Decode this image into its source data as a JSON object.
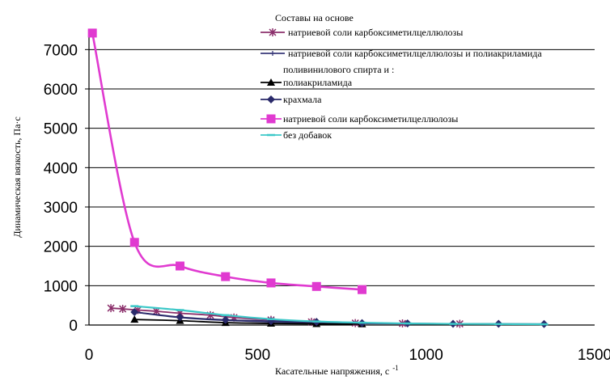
{
  "chart_data": {
    "type": "line",
    "title": "",
    "xlabel": "Касательные напряжения, с",
    "xlabel_sup": "-1",
    "ylabel": "Динамическая вязкость, Па·с",
    "xlim": [
      0,
      1500
    ],
    "ylim": [
      0,
      7500
    ],
    "xticks": [
      0,
      500,
      1000,
      1500
    ],
    "yticks": [
      0,
      1000,
      2000,
      3000,
      4000,
      5000,
      6000,
      7000
    ],
    "xtick_labels": [
      "0",
      "500",
      "1000",
      "1500"
    ],
    "ytick_labels": [
      "0",
      "1000",
      "2000",
      "3000",
      "4000",
      "5000",
      "6000",
      "7000"
    ],
    "grid": "horizontal",
    "legend": {
      "placement": "top-right",
      "header": "Составы на основе",
      "note": "поливинилового спирта и :",
      "entries": [
        "натриевой соли карбоксиметилцеллюлозы",
        "натриевой соли карбоксиметилцеллюлозы  и полиакриламида",
        "полиакриламида",
        "крахмала",
        "натриевой соли карбоксиметилцеллюлозы",
        "без добавок"
      ]
    },
    "series": [
      {
        "color": "#8b2f6b",
        "marker": "asterisk",
        "x": [
          65,
          100,
          145,
          200,
          270,
          360,
          430,
          540,
          660,
          790,
          930,
          1100
        ],
        "y": [
          430,
          410,
          380,
          350,
          300,
          250,
          190,
          130,
          80,
          50,
          40,
          30
        ]
      },
      {
        "color": "#3a3a7a",
        "marker": "plus",
        "x": [
          135,
          270,
          405,
          540,
          675,
          810,
          945,
          1080
        ],
        "y": [
          330,
          190,
          120,
          80,
          50,
          40,
          35,
          30
        ]
      },
      {
        "color": "#000000",
        "marker": "triangle",
        "x": [
          135,
          270,
          405,
          540,
          675,
          810
        ],
        "y": [
          140,
          110,
          60,
          40,
          30,
          25
        ]
      },
      {
        "color": "#2a2a6a",
        "marker": "diamond",
        "x": [
          135,
          270,
          405,
          540,
          675,
          810,
          945,
          1080,
          1215,
          1350
        ],
        "y": [
          330,
          200,
          130,
          100,
          80,
          50,
          40,
          30,
          30,
          25
        ]
      },
      {
        "color": "#e03ad0",
        "marker": "square",
        "x": [
          10,
          135,
          270,
          405,
          540,
          675,
          810
        ],
        "y": [
          7420,
          2100,
          1500,
          1230,
          1070,
          980,
          900
        ]
      },
      {
        "color": "#3cc8c8",
        "marker": "dash",
        "x": [
          135,
          270,
          405,
          540,
          675,
          810,
          945,
          1080,
          1215,
          1350
        ],
        "y": [
          480,
          380,
          250,
          150,
          90,
          60,
          40,
          30,
          25,
          20
        ]
      }
    ]
  }
}
